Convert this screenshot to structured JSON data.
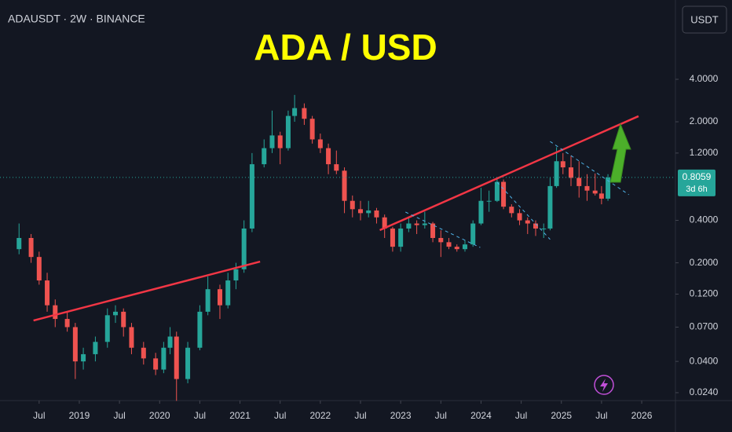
{
  "chart_data": {
    "type": "candlestick",
    "header": "ADAUSDT · 2W · BINANCE",
    "title": "ADA / USD",
    "currency_button": "USDT",
    "last_price": 0.8059,
    "countdown": "3d 6h",
    "log_scale": true,
    "up_color": "#26a69a",
    "down_color": "#ef5350",
    "x": [
      2018.25,
      2018.4,
      2018.5,
      2018.6,
      2018.7,
      2018.85,
      2018.95,
      2019.05,
      2019.2,
      2019.35,
      2019.45,
      2019.55,
      2019.65,
      2019.8,
      2019.95,
      2020.05,
      2020.13,
      2020.21,
      2020.35,
      2020.5,
      2020.6,
      2020.75,
      2020.85,
      2020.95,
      2021.05,
      2021.15,
      2021.3,
      2021.4,
      2021.5,
      2021.6,
      2021.68,
      2021.8,
      2021.9,
      2022.0,
      2022.1,
      2022.2,
      2022.3,
      2022.4,
      2022.5,
      2022.6,
      2022.7,
      2022.8,
      2022.9,
      2023.0,
      2023.1,
      2023.2,
      2023.3,
      2023.4,
      2023.5,
      2023.6,
      2023.7,
      2023.8,
      2023.9,
      2024.0,
      2024.1,
      2024.2,
      2024.28,
      2024.38,
      2024.48,
      2024.58,
      2024.68,
      2024.78,
      2024.86,
      2024.94,
      2025.02,
      2025.12,
      2025.22,
      2025.32,
      2025.42,
      2025.5,
      2025.58
    ],
    "open": [
      0.25,
      0.3,
      0.22,
      0.15,
      0.1,
      0.08,
      0.07,
      0.04,
      0.045,
      0.055,
      0.085,
      0.09,
      0.07,
      0.05,
      0.042,
      0.035,
      0.05,
      0.06,
      0.03,
      0.05,
      0.09,
      0.13,
      0.1,
      0.15,
      0.18,
      0.35,
      1.0,
      1.3,
      1.6,
      1.3,
      2.2,
      2.5,
      2.1,
      1.5,
      1.3,
      1.0,
      0.9,
      0.55,
      0.48,
      0.45,
      0.47,
      0.42,
      0.35,
      0.26,
      0.35,
      0.38,
      0.37,
      0.38,
      0.3,
      0.28,
      0.26,
      0.25,
      0.27,
      0.38,
      0.55,
      0.55,
      0.75,
      0.5,
      0.45,
      0.4,
      0.38,
      0.35,
      0.35,
      0.7,
      1.05,
      0.95,
      0.8,
      0.7,
      0.65,
      0.62,
      0.57
    ],
    "high": [
      0.38,
      0.32,
      0.24,
      0.17,
      0.11,
      0.09,
      0.075,
      0.05,
      0.06,
      0.095,
      0.1,
      0.095,
      0.075,
      0.055,
      0.046,
      0.055,
      0.07,
      0.065,
      0.055,
      0.1,
      0.16,
      0.14,
      0.17,
      0.2,
      0.4,
      1.2,
      1.5,
      2.4,
      1.7,
      2.4,
      3.1,
      2.7,
      2.2,
      1.65,
      1.4,
      1.25,
      0.95,
      0.6,
      0.55,
      0.55,
      0.49,
      0.44,
      0.36,
      0.38,
      0.42,
      0.4,
      0.46,
      0.39,
      0.34,
      0.3,
      0.27,
      0.29,
      0.4,
      0.68,
      0.65,
      0.81,
      0.78,
      0.52,
      0.48,
      0.42,
      0.4,
      0.38,
      0.8,
      1.32,
      1.2,
      1.15,
      1.05,
      0.85,
      0.86,
      0.7,
      0.85
    ],
    "low": [
      0.23,
      0.2,
      0.14,
      0.09,
      0.07,
      0.065,
      0.03,
      0.035,
      0.04,
      0.05,
      0.075,
      0.06,
      0.045,
      0.038,
      0.032,
      0.033,
      0.045,
      0.021,
      0.028,
      0.048,
      0.085,
      0.08,
      0.095,
      0.13,
      0.17,
      0.33,
      0.95,
      1.2,
      1.0,
      1.25,
      2.0,
      1.9,
      1.4,
      1.2,
      0.85,
      0.85,
      0.45,
      0.42,
      0.4,
      0.42,
      0.38,
      0.3,
      0.24,
      0.24,
      0.33,
      0.32,
      0.35,
      0.28,
      0.22,
      0.25,
      0.24,
      0.24,
      0.26,
      0.37,
      0.46,
      0.54,
      0.48,
      0.42,
      0.37,
      0.32,
      0.31,
      0.3,
      0.34,
      0.68,
      0.85,
      0.7,
      0.58,
      0.55,
      0.6,
      0.52,
      0.55
    ],
    "close": [
      0.3,
      0.22,
      0.15,
      0.1,
      0.08,
      0.07,
      0.04,
      0.045,
      0.055,
      0.085,
      0.09,
      0.07,
      0.05,
      0.042,
      0.035,
      0.05,
      0.06,
      0.03,
      0.05,
      0.09,
      0.13,
      0.1,
      0.15,
      0.18,
      0.35,
      1.0,
      1.3,
      1.6,
      1.3,
      2.2,
      2.5,
      2.1,
      1.5,
      1.3,
      1.0,
      0.9,
      0.55,
      0.48,
      0.45,
      0.47,
      0.42,
      0.35,
      0.26,
      0.35,
      0.38,
      0.37,
      0.38,
      0.3,
      0.28,
      0.26,
      0.25,
      0.27,
      0.38,
      0.55,
      0.55,
      0.75,
      0.5,
      0.45,
      0.4,
      0.38,
      0.35,
      0.35,
      0.7,
      1.05,
      0.95,
      0.8,
      0.7,
      0.65,
      0.62,
      0.57,
      0.8059
    ],
    "trendlines": [
      {
        "color": "#f23645",
        "dashed": false,
        "x": [
          2018.43,
          2021.25
        ],
        "y": [
          0.078,
          0.204
        ]
      },
      {
        "color": "#f23645",
        "dashed": false,
        "x": [
          2022.74,
          2025.96
        ],
        "y": [
          0.341,
          2.19
        ]
      },
      {
        "color": "#4fb3e8",
        "dashed": true,
        "x": [
          2023.06,
          2023.99
        ],
        "y": [
          0.458,
          0.257
        ]
      },
      {
        "color": "#4fb3e8",
        "dashed": true,
        "x": [
          2024.2,
          2024.86
        ],
        "y": [
          0.746,
          0.293
        ]
      },
      {
        "color": "#4fb3e8",
        "dashed": true,
        "x": [
          2024.86,
          2025.84
        ],
        "y": [
          1.45,
          0.608
        ]
      }
    ],
    "xlim": [
      2018.013,
      2026.42
    ],
    "ylim": [
      0.0211,
      14.6
    ],
    "xticks": [
      {
        "value": 2018.5,
        "label": "Jul"
      },
      2019,
      {
        "value": 2019.5,
        "label": "Jul"
      },
      2020,
      {
        "value": 2020.5,
        "label": "Jul"
      },
      2021,
      {
        "value": 2021.5,
        "label": "Jul"
      },
      2022,
      {
        "value": 2022.5,
        "label": "Jul"
      },
      2023,
      {
        "value": 2023.5,
        "label": "Jul"
      },
      2024,
      {
        "value": 2024.5,
        "label": "Jul"
      },
      2025,
      {
        "value": 2025.5,
        "label": "Jul"
      },
      2026
    ],
    "yticks": [
      {
        "value": 4,
        "label": "4.0000"
      },
      {
        "value": 2,
        "label": "2.0000"
      },
      {
        "value": 1.2,
        "label": "1.2000"
      },
      {
        "value": 0.4,
        "label": "0.4000"
      },
      {
        "value": 0.2,
        "label": "0.2000"
      },
      {
        "value": 0.12,
        "label": "0.1200"
      },
      {
        "value": 0.07,
        "label": "0.0700"
      },
      {
        "value": 0.04,
        "label": "0.0400"
      },
      {
        "value": 0.024,
        "label": "0.0240"
      }
    ]
  }
}
